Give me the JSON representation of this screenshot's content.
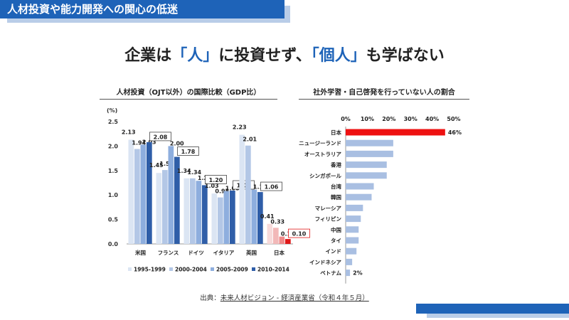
{
  "banner": {
    "title": "人材投資や能力開発への関心の低迷"
  },
  "headline": {
    "part1": "企業は",
    "accent1": "「人」",
    "part2": "に投資せず、",
    "accent2": "「個人」",
    "part3": "も学ばない"
  },
  "source": {
    "prefix": "出典：",
    "link": "未来人材ビジョン - 経済産業省（令和４年５月）"
  },
  "colors": {
    "primary": "#1e63b8",
    "light": "#b9cde8",
    "red": "#e02020",
    "pink": "#f2b8b8"
  },
  "chart_data": [
    {
      "type": "bar",
      "title": "人材投資（OJT以外）の国際比較（GDP比）",
      "unit": "(%)",
      "categories": [
        "米国",
        "フランス",
        "ドイツ",
        "イタリア",
        "英国",
        "日本"
      ],
      "ylim": [
        0,
        2.5
      ],
      "yticks": [
        "0.0",
        "0.5",
        "1.0",
        "1.5",
        "2.0",
        "2.5"
      ],
      "series": [
        {
          "name": "1995-1999",
          "values": [
            2.13,
            1.45,
            1.34,
            1.03,
            2.23,
            0.41
          ]
        },
        {
          "name": "2000-2004",
          "values": [
            1.94,
            1.51,
            1.34,
            0.95,
            2.01,
            0.33
          ]
        },
        {
          "name": "2005-2009",
          "values": [
            2.03,
            2.0,
            1.29,
            1.08,
            1.11,
            0.15
          ]
        },
        {
          "name": "2010-2014",
          "values": [
            2.08,
            1.78,
            1.2,
            1.09,
            1.06,
            0.1
          ]
        }
      ],
      "boxed_series": "2010-2014",
      "legend": "bottom"
    },
    {
      "type": "bar",
      "orientation": "horizontal",
      "title": "社外学習・自己啓発を行っていない人の割合",
      "xlim": [
        0,
        50
      ],
      "xticks": [
        "0%",
        "10%",
        "20%",
        "30%",
        "40%",
        "50%"
      ],
      "categories": [
        "日本",
        "ニュージーランド",
        "オーストラリア",
        "香港",
        "シンガポール",
        "台湾",
        "韓国",
        "マレーシア",
        "フィリピン",
        "中国",
        "タイ",
        "インド",
        "インドネシア",
        "ベトナム"
      ],
      "values": [
        46,
        22,
        22,
        19,
        19,
        13,
        12,
        8,
        7,
        6,
        6,
        5,
        3,
        2
      ],
      "labels": {
        "日本": "46%",
        "ベトナム": "2%"
      }
    }
  ]
}
